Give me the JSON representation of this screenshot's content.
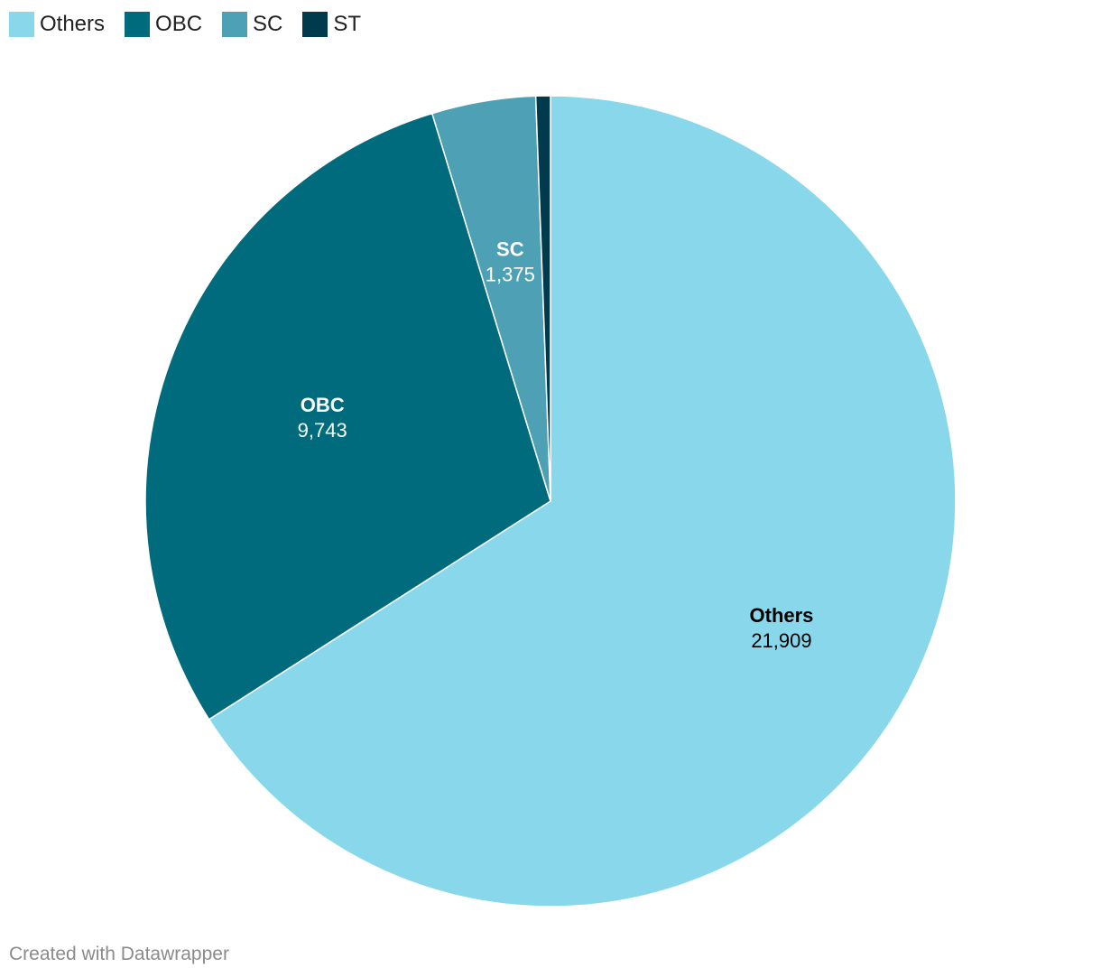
{
  "chart_data": {
    "type": "pie",
    "categories": [
      "Others",
      "OBC",
      "SC",
      "ST"
    ],
    "values": [
      21909,
      9743,
      1375,
      193
    ],
    "value_labels": [
      "21,909",
      "9,743",
      "1,375",
      ""
    ],
    "colors": [
      "#88d7ea",
      "#006b7c",
      "#4ea1b5",
      "#003a4c"
    ],
    "label_colors": [
      "#000000",
      "#ffffff",
      "#ffffff",
      "#ffffff"
    ],
    "legend_position": "top-left"
  },
  "footer": {
    "credit": "Created with Datawrapper"
  }
}
